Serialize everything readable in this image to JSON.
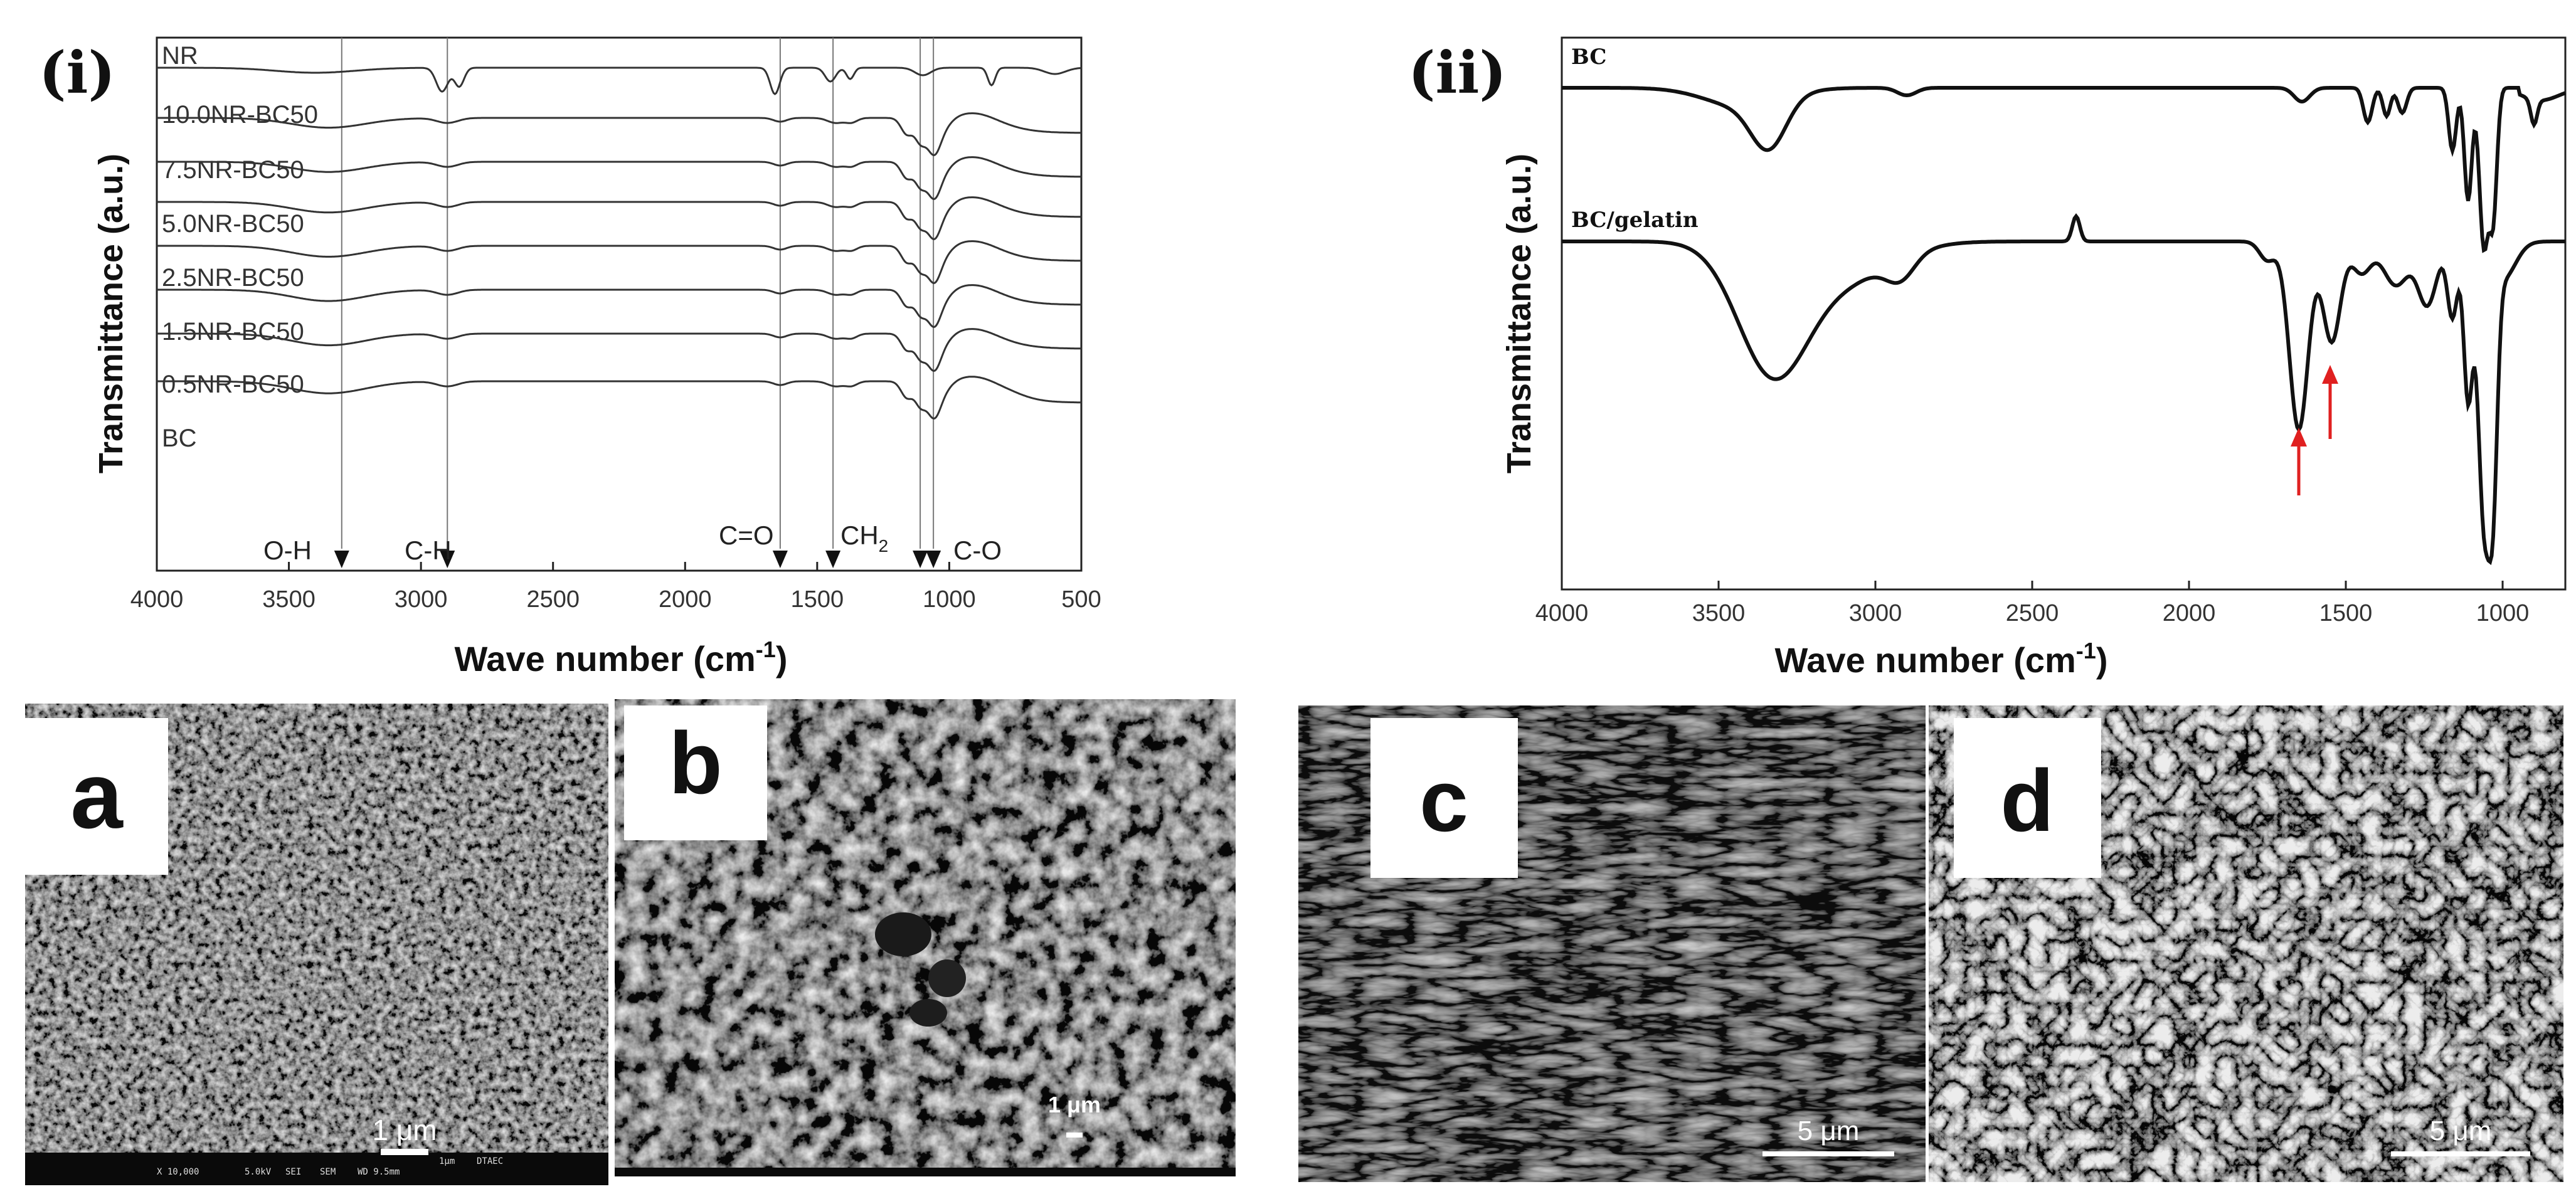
{
  "panels": {
    "i": {
      "label": "(i)"
    },
    "ii": {
      "label": "(ii)"
    }
  },
  "chart_data": [
    {
      "type": "line",
      "panel": "(i)",
      "xlabel_main": "Wave number (cm",
      "xlabel_sup": "-1",
      "xlabel_end": ")",
      "ylabel": "Transmittance (a.u.)",
      "xlim": [
        4000,
        500
      ],
      "x_ticks": [
        "4000",
        "3500",
        "3000",
        "2500",
        "2000",
        "1500",
        "1000",
        "500"
      ],
      "grid": false,
      "series": [
        {
          "name": "NR"
        },
        {
          "name": "10.0NR-BC50"
        },
        {
          "name": "7.5NR-BC50"
        },
        {
          "name": "5.0NR-BC50"
        },
        {
          "name": "2.5NR-BC50"
        },
        {
          "name": "1.5NR-BC50"
        },
        {
          "name": "0.5NR-BC50"
        },
        {
          "name": "BC"
        }
      ],
      "reference_lines": [
        3300,
        2900,
        1640,
        1440,
        1110,
        1060
      ],
      "annotations": [
        {
          "text": "O-H"
        },
        {
          "text": "C-H"
        },
        {
          "text": "C=O"
        },
        {
          "text": "CH",
          "sub": "2"
        },
        {
          "text": "C-O"
        }
      ]
    },
    {
      "type": "line",
      "panel": "(ii)",
      "xlabel_main": "Wave number (cm",
      "xlabel_sup": "-1",
      "xlabel_end": ")",
      "ylabel": "Transmittance (a.u.)",
      "xlim": [
        4000,
        800
      ],
      "x_ticks": [
        "4000",
        "3500",
        "3000",
        "2500",
        "2000",
        "1500",
        "1000"
      ],
      "grid": false,
      "series": [
        {
          "name": "BC"
        },
        {
          "name": "BC/gelatin"
        }
      ],
      "markers": [
        {
          "x": 1650,
          "series": "BC/gelatin",
          "color": "#e02020"
        },
        {
          "x": 1550,
          "series": "BC/gelatin",
          "color": "#e02020"
        }
      ]
    }
  ],
  "sem": {
    "a": {
      "label": "a",
      "scale": "1 μm",
      "info": [
        "X 10,000",
        "5.0kV",
        "SEI",
        "SEM",
        "WD 9.5mm",
        "1μm",
        "DTAEC"
      ]
    },
    "b": {
      "label": "b",
      "scale": "1 μm"
    },
    "c": {
      "label": "c",
      "scale": "5 μm"
    },
    "d": {
      "label": "d",
      "scale": "5 μm"
    }
  }
}
